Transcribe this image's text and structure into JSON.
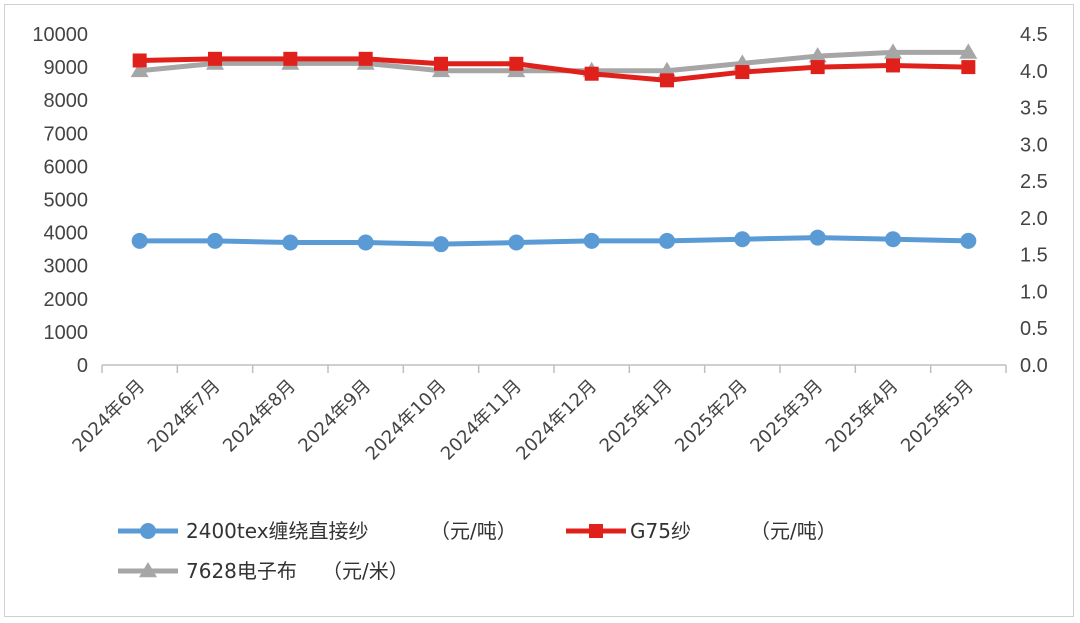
{
  "chart_data": {
    "type": "line",
    "title": "",
    "categories": [
      "2024年6月",
      "2024年7月",
      "2024年8月",
      "2024年9月",
      "2024年10月",
      "2024年11月",
      "2024年12月",
      "2025年1月",
      "2025年2月",
      "2025年3月",
      "2025年4月",
      "2025年5月"
    ],
    "y_left": {
      "min": 0,
      "max": 10000,
      "ticks": [
        "0",
        "1000",
        "2000",
        "3000",
        "4000",
        "5000",
        "6000",
        "7000",
        "8000",
        "9000",
        "10000"
      ]
    },
    "y_right": {
      "min": 0,
      "max": 4.5,
      "ticks": [
        "0.0",
        "0.5",
        "1.0",
        "1.5",
        "2.0",
        "2.5",
        "3.0",
        "3.5",
        "4.0",
        "4.5"
      ]
    },
    "series": [
      {
        "name": "2400tex缠绕直接纱",
        "unit": "（元/吨）",
        "axis": "left",
        "color": "#5b9bd5",
        "marker": "circle",
        "values": [
          3750,
          3750,
          3700,
          3700,
          3650,
          3700,
          3750,
          3750,
          3800,
          3850,
          3800,
          3750
        ]
      },
      {
        "name": "G75纱",
        "unit": "（元/吨）",
        "axis": "left",
        "color": "#e0201b",
        "marker": "square",
        "values": [
          9200,
          9250,
          9250,
          9250,
          9100,
          9100,
          8800,
          8600,
          8850,
          9000,
          9050,
          9000
        ]
      },
      {
        "name": "7628电子布",
        "unit": "（元/米）",
        "axis": "right",
        "color": "#a6a6a6",
        "marker": "triangle",
        "values": [
          4.0,
          4.1,
          4.1,
          4.1,
          4.0,
          4.0,
          4.0,
          4.0,
          4.1,
          4.2,
          4.25,
          4.25
        ]
      }
    ],
    "legend_position": "bottom-left",
    "grid": false
  }
}
